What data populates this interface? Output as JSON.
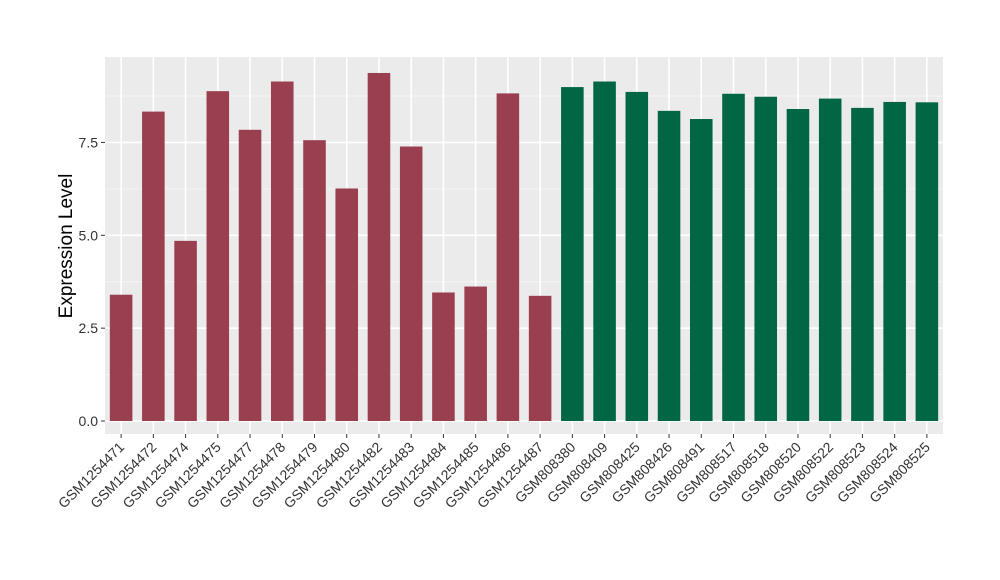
{
  "chart_data": {
    "type": "bar",
    "title": "",
    "xlabel": "",
    "ylabel": "Expression Level",
    "ylim": [
      -0.35,
      9.8
    ],
    "yticks": [
      0.0,
      2.5,
      5.0,
      7.5
    ],
    "ytick_labels": [
      "0.0",
      "2.5",
      "5.0",
      "7.5"
    ],
    "grid": true,
    "legend": "none",
    "colors": {
      "group_a": "#9a3f4f",
      "group_b": "#006644",
      "panel_bg": "#ebebeb",
      "grid_major": "#ffffff",
      "grid_minor": "#f4f4f4"
    },
    "categories": [
      "GSM1254471",
      "GSM1254472",
      "GSM1254474",
      "GSM1254475",
      "GSM1254477",
      "GSM1254478",
      "GSM1254479",
      "GSM1254480",
      "GSM1254482",
      "GSM1254483",
      "GSM1254484",
      "GSM1254485",
      "GSM1254486",
      "GSM1254487",
      "GSM808380",
      "GSM808409",
      "GSM808425",
      "GSM808426",
      "GSM808491",
      "GSM808517",
      "GSM808518",
      "GSM808520",
      "GSM808522",
      "GSM808523",
      "GSM808524",
      "GSM808525"
    ],
    "values": [
      3.4,
      8.33,
      4.85,
      8.88,
      7.84,
      9.14,
      7.56,
      6.26,
      9.37,
      7.39,
      3.46,
      3.62,
      8.82,
      3.37,
      8.99,
      9.14,
      8.86,
      8.35,
      8.13,
      8.81,
      8.73,
      8.4,
      8.68,
      8.43,
      8.59,
      8.58
    ],
    "groups": [
      "a",
      "a",
      "a",
      "a",
      "a",
      "a",
      "a",
      "a",
      "a",
      "a",
      "a",
      "a",
      "a",
      "a",
      "b",
      "b",
      "b",
      "b",
      "b",
      "b",
      "b",
      "b",
      "b",
      "b",
      "b",
      "b"
    ]
  }
}
